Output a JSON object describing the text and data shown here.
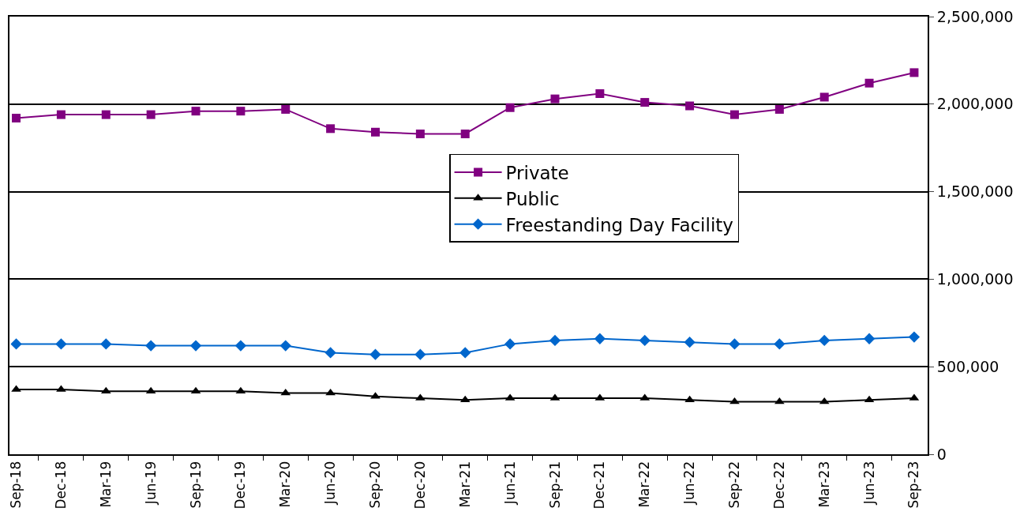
{
  "chart_data": {
    "type": "line",
    "categories": [
      "Sep-18",
      "Dec-18",
      "Mar-19",
      "Jun-19",
      "Sep-19",
      "Dec-19",
      "Mar-20",
      "Jun-20",
      "Sep-20",
      "Dec-20",
      "Mar-21",
      "Jun-21",
      "Sep-21",
      "Dec-21",
      "Mar-22",
      "Jun-22",
      "Sep-22",
      "Dec-22",
      "Mar-23",
      "Jun-23",
      "Sep-23"
    ],
    "series": [
      {
        "name": "Private",
        "color": "#800080",
        "marker": "square",
        "values": [
          1920000,
          1940000,
          1940000,
          1940000,
          1960000,
          1960000,
          1970000,
          1860000,
          1840000,
          1830000,
          1830000,
          1980000,
          2030000,
          2060000,
          2010000,
          1990000,
          1940000,
          1970000,
          2040000,
          2120000,
          2180000
        ]
      },
      {
        "name": "Public",
        "color": "#000000",
        "marker": "triangle",
        "values": [
          370000,
          370000,
          360000,
          360000,
          360000,
          360000,
          350000,
          350000,
          330000,
          320000,
          310000,
          320000,
          320000,
          320000,
          320000,
          310000,
          300000,
          300000,
          300000,
          310000,
          320000
        ]
      },
      {
        "name": "Freestanding Day Facility",
        "color": "#0066cc",
        "marker": "diamond",
        "values": [
          630000,
          630000,
          630000,
          620000,
          620000,
          620000,
          620000,
          580000,
          570000,
          570000,
          580000,
          630000,
          650000,
          660000,
          650000,
          640000,
          630000,
          630000,
          650000,
          660000,
          670000
        ]
      }
    ],
    "ylim": [
      0,
      2500000
    ],
    "yticks": [
      {
        "value": 0,
        "label": "0"
      },
      {
        "value": 500000,
        "label": "500,000"
      },
      {
        "value": 1000000,
        "label": "1,000,000"
      },
      {
        "value": 1500000,
        "label": "1,500,000"
      },
      {
        "value": 2000000,
        "label": "2,000,000"
      },
      {
        "value": 2500000,
        "label": "2,500,000"
      }
    ],
    "grid": "y",
    "legend": "center",
    "line_style": "solid"
  }
}
